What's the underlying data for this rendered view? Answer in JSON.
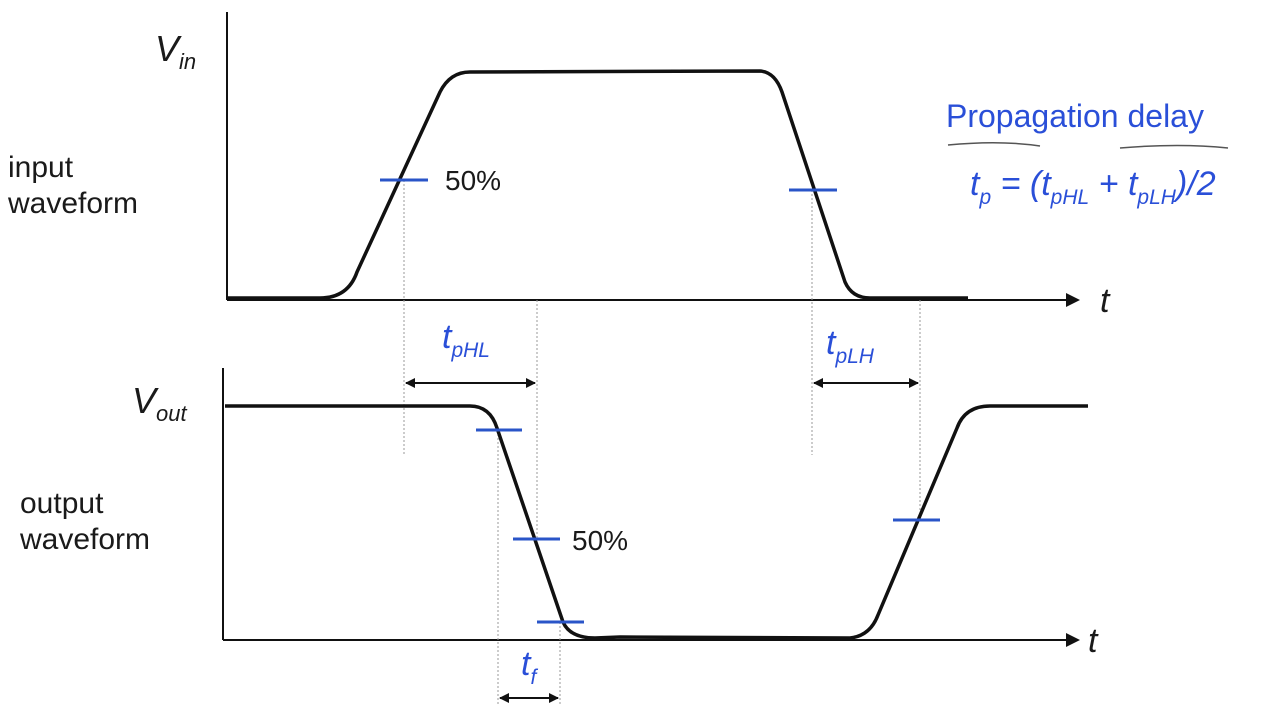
{
  "labels": {
    "vin_main": "V",
    "vin_sub": "in",
    "vout_main": "V",
    "vout_sub": "out",
    "input_line1": "input",
    "input_line2": "waveform",
    "output_line1": "output",
    "output_line2": "waveform",
    "t_top": "t",
    "t_bottom": "t",
    "pct_top": "50%",
    "pct_bottom": "50%"
  },
  "formula": {
    "title": "Propagation delay",
    "tp_main": "t",
    "tp_sub": "p",
    "eq_open": " = (",
    "t1_main": "t",
    "t1_sub": "pHL",
    "plus": " + ",
    "t2_main": "t",
    "t2_sub": "pLH",
    "eq_close": ")/2"
  },
  "intervals": {
    "tphl_main": "t",
    "tphl_sub": "pHL",
    "tplh_main": "t",
    "tplh_sub": "pLH",
    "tf_main": "t",
    "tf_sub": "f"
  },
  "colors": {
    "waveform": "#111111",
    "marker": "#2a55c8",
    "guide": "#9a9a9a",
    "annotation": "#2a4fd8"
  }
}
